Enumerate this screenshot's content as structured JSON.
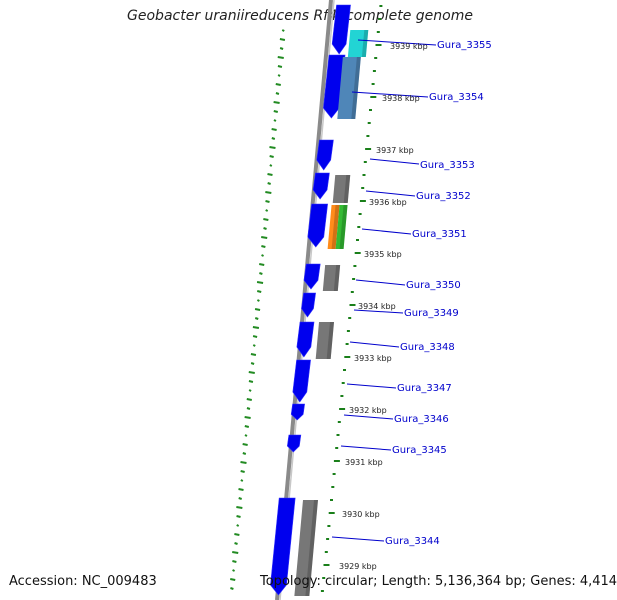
{
  "title": "Geobacter uraniireducens Rf4, complete genome",
  "accession": "Accession: NC_009483",
  "summary": "Topology: circular; Length: 5,136,364 bp; Genes: 4,414",
  "colors": {
    "backbone": "#8a8a8a",
    "gc_ticks": "#228b22",
    "kbp_ticks": "#1a7f1a",
    "gene_label": "#0000cc",
    "gene_arrow": "#0000ee",
    "cog_grey": "#777777",
    "cog_cyan": "#22d4d4",
    "cog_steel": "#4f86b8",
    "cog_orange": "#ff8c1a",
    "cog_green": "#33bb33"
  },
  "kbp_labels": [
    "3939 kbp",
    "3938 kbp",
    "3937 kbp",
    "3936 kbp",
    "3935 kbp",
    "3934 kbp",
    "3933 kbp",
    "3932 kbp",
    "3931 kbp",
    "3930 kbp",
    "3929 kbp"
  ],
  "genes": [
    "Gura_3355",
    "Gura_3354",
    "Gura_3353",
    "Gura_3352",
    "Gura_3351",
    "Gura_3350",
    "Gura_3349",
    "Gura_3348",
    "Gura_3347",
    "Gura_3346",
    "Gura_3345",
    "Gura_3344"
  ]
}
